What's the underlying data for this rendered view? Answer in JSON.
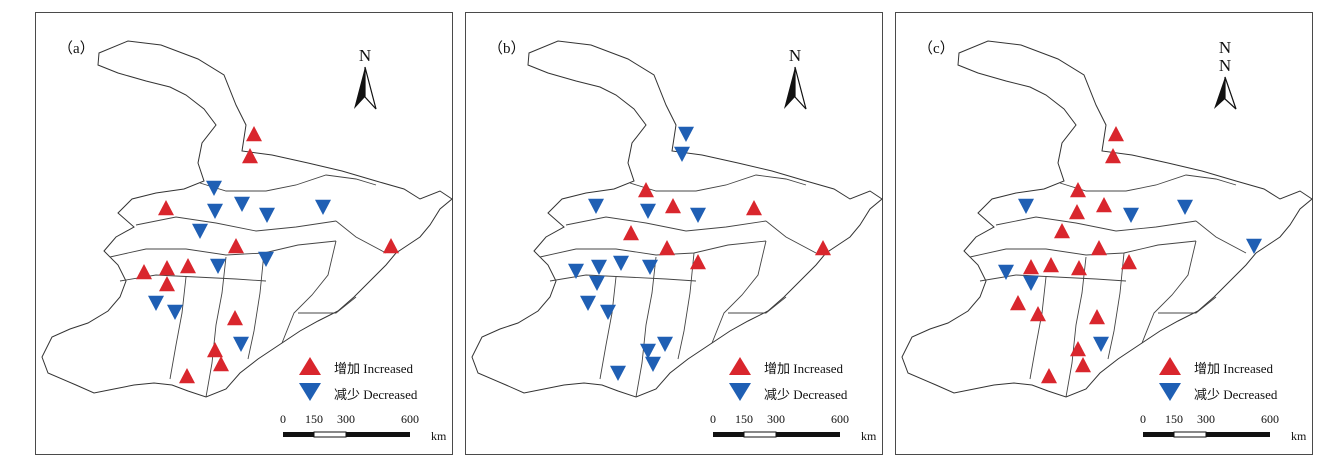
{
  "panels": [
    {
      "label": "（a）",
      "north": "N",
      "north_double": false,
      "increased": [
        [
          253,
          133
        ],
        [
          249,
          155
        ],
        [
          165,
          207
        ],
        [
          235,
          245
        ],
        [
          143,
          271
        ],
        [
          166,
          267
        ],
        [
          187,
          265
        ],
        [
          166,
          283
        ],
        [
          234,
          317
        ],
        [
          214,
          349
        ],
        [
          220,
          363
        ],
        [
          186,
          375
        ],
        [
          390,
          245
        ]
      ],
      "decreased": [
        [
          213,
          187
        ],
        [
          241,
          203
        ],
        [
          214,
          210
        ],
        [
          266,
          214
        ],
        [
          322,
          206
        ],
        [
          199,
          230
        ],
        [
          217,
          265
        ],
        [
          265,
          258
        ],
        [
          155,
          302
        ],
        [
          174,
          311
        ],
        [
          240,
          343
        ]
      ]
    },
    {
      "label": "（b）",
      "north": "N",
      "north_double": false,
      "increased": [
        [
          645,
          189
        ],
        [
          672,
          205
        ],
        [
          753,
          207
        ],
        [
          630,
          232
        ],
        [
          666,
          247
        ],
        [
          697,
          261
        ],
        [
          822,
          247
        ]
      ],
      "decreased": [
        [
          685,
          133
        ],
        [
          681,
          153
        ],
        [
          595,
          205
        ],
        [
          647,
          210
        ],
        [
          697,
          214
        ],
        [
          575,
          270
        ],
        [
          598,
          266
        ],
        [
          620,
          262
        ],
        [
          649,
          266
        ],
        [
          596,
          282
        ],
        [
          587,
          302
        ],
        [
          607,
          311
        ],
        [
          664,
          343
        ],
        [
          647,
          350
        ],
        [
          652,
          363
        ],
        [
          617,
          372
        ]
      ]
    },
    {
      "label": "（c）",
      "north": "N",
      "north_double": true,
      "increased": [
        [
          1115,
          133
        ],
        [
          1112,
          155
        ],
        [
          1077,
          189
        ],
        [
          1103,
          204
        ],
        [
          1076,
          211
        ],
        [
          1061,
          230
        ],
        [
          1098,
          247
        ],
        [
          1128,
          261
        ],
        [
          1030,
          266
        ],
        [
          1050,
          264
        ],
        [
          1078,
          267
        ],
        [
          1017,
          302
        ],
        [
          1037,
          313
        ],
        [
          1096,
          316
        ],
        [
          1077,
          348
        ],
        [
          1082,
          364
        ],
        [
          1048,
          375
        ]
      ],
      "decreased": [
        [
          1025,
          205
        ],
        [
          1130,
          214
        ],
        [
          1184,
          206
        ],
        [
          1005,
          271
        ],
        [
          1030,
          282
        ],
        [
          1253,
          245
        ],
        [
          1100,
          343
        ]
      ]
    }
  ],
  "legend": {
    "increased": "增加 Increased",
    "decreased": "减少 Decreased",
    "increased_color": "#d9262d",
    "decreased_color": "#1f5fb4"
  },
  "scale_bar": {
    "ticks": [
      "0",
      "150",
      "300",
      "600"
    ],
    "unit": "km"
  }
}
